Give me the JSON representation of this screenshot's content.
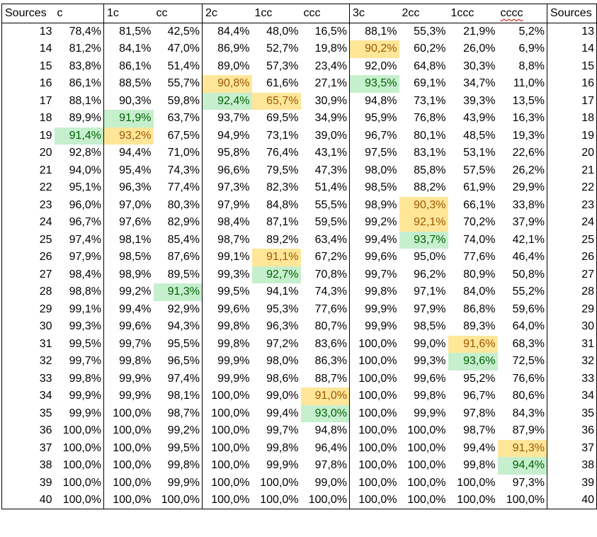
{
  "headers": [
    "Sources",
    "c",
    "1c",
    "cc",
    "2c",
    "1cc",
    "ccc",
    "3c",
    "2cc",
    "1ccc",
    "cccc",
    "Sources"
  ],
  "rows": [
    {
      "src": "13",
      "values": [
        "78,4%",
        "81,5%",
        "42,5%",
        "84,4%",
        "48,0%",
        "16,5%",
        "88,1%",
        "55,3%",
        "21,9%",
        "5,2%"
      ],
      "src_r": "13"
    },
    {
      "src": "14",
      "values": [
        "81,2%",
        "84,1%",
        "47,0%",
        "86,9%",
        "52,7%",
        "19,8%",
        "90,2%",
        "60,2%",
        "26,0%",
        "6,9%"
      ],
      "src_r": "14"
    },
    {
      "src": "15",
      "values": [
        "83,8%",
        "86,1%",
        "51,4%",
        "89,0%",
        "57,3%",
        "23,4%",
        "92,0%",
        "64,8%",
        "30,3%",
        "8,8%"
      ],
      "src_r": "15"
    },
    {
      "src": "16",
      "values": [
        "86,1%",
        "88,5%",
        "55,7%",
        "90,8%",
        "61,6%",
        "27,1%",
        "93,5%",
        "69,1%",
        "34,7%",
        "11,0%"
      ],
      "src_r": "16"
    },
    {
      "src": "17",
      "values": [
        "88,1%",
        "90,3%",
        "59,8%",
        "92,4%",
        "65,7%",
        "30,9%",
        "94,8%",
        "73,1%",
        "39,3%",
        "13,5%"
      ],
      "src_r": "17"
    },
    {
      "src": "18",
      "values": [
        "89,9%",
        "91,9%",
        "63,7%",
        "93,7%",
        "69,5%",
        "34,9%",
        "95,9%",
        "76,8%",
        "43,9%",
        "16,3%"
      ],
      "src_r": "18"
    },
    {
      "src": "19",
      "values": [
        "91,4%",
        "93,2%",
        "67,5%",
        "94,9%",
        "73,1%",
        "39,0%",
        "96,7%",
        "80,1%",
        "48,5%",
        "19,3%"
      ],
      "src_r": "19"
    },
    {
      "src": "20",
      "values": [
        "92,8%",
        "94,4%",
        "71,0%",
        "95,8%",
        "76,4%",
        "43,1%",
        "97,5%",
        "83,1%",
        "53,1%",
        "22,6%"
      ],
      "src_r": "20"
    },
    {
      "src": "21",
      "values": [
        "94,0%",
        "95,4%",
        "74,3%",
        "96,6%",
        "79,5%",
        "47,3%",
        "98,0%",
        "85,8%",
        "57,5%",
        "26,2%"
      ],
      "src_r": "21"
    },
    {
      "src": "22",
      "values": [
        "95,1%",
        "96,3%",
        "77,4%",
        "97,3%",
        "82,3%",
        "51,4%",
        "98,5%",
        "88,2%",
        "61,9%",
        "29,9%"
      ],
      "src_r": "22"
    },
    {
      "src": "23",
      "values": [
        "96,0%",
        "97,0%",
        "80,3%",
        "97,9%",
        "84,8%",
        "55,5%",
        "98,9%",
        "90,3%",
        "66,1%",
        "33,8%"
      ],
      "src_r": "23"
    },
    {
      "src": "24",
      "values": [
        "96,7%",
        "97,6%",
        "82,9%",
        "98,4%",
        "87,1%",
        "59,5%",
        "99,2%",
        "92,1%",
        "70,2%",
        "37,9%"
      ],
      "src_r": "24"
    },
    {
      "src": "25",
      "values": [
        "97,4%",
        "98,1%",
        "85,4%",
        "98,7%",
        "89,2%",
        "63,4%",
        "99,4%",
        "93,7%",
        "74,0%",
        "42,1%"
      ],
      "src_r": "25"
    },
    {
      "src": "26",
      "values": [
        "97,9%",
        "98,5%",
        "87,6%",
        "99,1%",
        "91,1%",
        "67,2%",
        "99,6%",
        "95,0%",
        "77,6%",
        "46,4%"
      ],
      "src_r": "26"
    },
    {
      "src": "27",
      "values": [
        "98,4%",
        "98,9%",
        "89,5%",
        "99,3%",
        "92,7%",
        "70,8%",
        "99,7%",
        "96,2%",
        "80,9%",
        "50,8%"
      ],
      "src_r": "27"
    },
    {
      "src": "28",
      "values": [
        "98,8%",
        "99,2%",
        "91,3%",
        "99,5%",
        "94,1%",
        "74,3%",
        "99,8%",
        "97,1%",
        "84,0%",
        "55,2%"
      ],
      "src_r": "28"
    },
    {
      "src": "29",
      "values": [
        "99,1%",
        "99,4%",
        "92,9%",
        "99,6%",
        "95,3%",
        "77,6%",
        "99,9%",
        "97,9%",
        "86,8%",
        "59,6%"
      ],
      "src_r": "29"
    },
    {
      "src": "30",
      "values": [
        "99,3%",
        "99,6%",
        "94,3%",
        "99,8%",
        "96,3%",
        "80,7%",
        "99,9%",
        "98,5%",
        "89,3%",
        "64,0%"
      ],
      "src_r": "30"
    },
    {
      "src": "31",
      "values": [
        "99,5%",
        "99,7%",
        "95,5%",
        "99,8%",
        "97,2%",
        "83,6%",
        "100,0%",
        "99,0%",
        "91,6%",
        "68,3%"
      ],
      "src_r": "31"
    },
    {
      "src": "32",
      "values": [
        "99,7%",
        "99,8%",
        "96,5%",
        "99,9%",
        "98,0%",
        "86,3%",
        "100,0%",
        "99,3%",
        "93,6%",
        "72,5%"
      ],
      "src_r": "32"
    },
    {
      "src": "33",
      "values": [
        "99,8%",
        "99,9%",
        "97,4%",
        "99,9%",
        "98,6%",
        "88,7%",
        "100,0%",
        "99,6%",
        "95,2%",
        "76,6%"
      ],
      "src_r": "33"
    },
    {
      "src": "34",
      "values": [
        "99,9%",
        "99,9%",
        "98,1%",
        "100,0%",
        "99,0%",
        "91,0%",
        "100,0%",
        "99,8%",
        "96,7%",
        "80,6%"
      ],
      "src_r": "34"
    },
    {
      "src": "35",
      "values": [
        "99,9%",
        "100,0%",
        "98,7%",
        "100,0%",
        "99,4%",
        "93,0%",
        "100,0%",
        "99,9%",
        "97,8%",
        "84,3%"
      ],
      "src_r": "35"
    },
    {
      "src": "36",
      "values": [
        "100,0%",
        "100,0%",
        "99,2%",
        "100,0%",
        "99,7%",
        "94,8%",
        "100,0%",
        "100,0%",
        "98,7%",
        "87,9%"
      ],
      "src_r": "36"
    },
    {
      "src": "37",
      "values": [
        "100,0%",
        "100,0%",
        "99,5%",
        "100,0%",
        "99,8%",
        "96,4%",
        "100,0%",
        "100,0%",
        "99,4%",
        "91,3%"
      ],
      "src_r": "37"
    },
    {
      "src": "38",
      "values": [
        "100,0%",
        "100,0%",
        "99,8%",
        "100,0%",
        "99,9%",
        "97,8%",
        "100,0%",
        "100,0%",
        "99,8%",
        "94,4%"
      ],
      "src_r": "38"
    },
    {
      "src": "39",
      "values": [
        "100,0%",
        "100,0%",
        "99,9%",
        "100,0%",
        "100,0%",
        "99,0%",
        "100,0%",
        "100,0%",
        "100,0%",
        "97,3%"
      ],
      "src_r": "39"
    },
    {
      "src": "40",
      "values": [
        "100,0%",
        "100,0%",
        "100,0%",
        "100,0%",
        "100,0%",
        "100,0%",
        "100,0%",
        "100,0%",
        "100,0%",
        "100,0%"
      ],
      "src_r": "40"
    }
  ],
  "highlights": {
    "amber": [
      [
        6,
        1
      ],
      [
        3,
        3
      ],
      [
        1,
        6
      ],
      [
        4,
        4
      ],
      [
        10,
        7
      ],
      [
        11,
        7
      ],
      [
        13,
        4
      ],
      [
        21,
        5
      ],
      [
        18,
        8
      ],
      [
        24,
        9
      ]
    ],
    "green": [
      [
        6,
        0
      ],
      [
        5,
        1
      ],
      [
        15,
        2
      ],
      [
        4,
        3
      ],
      [
        14,
        4
      ],
      [
        22,
        5
      ],
      [
        3,
        6
      ],
      [
        12,
        7
      ],
      [
        19,
        8
      ],
      [
        25,
        9
      ]
    ],
    "amber_color": "#ffe699",
    "green_color": "#c6efce",
    "amber_text_color": "#9c5700",
    "green_text_color": "#006100"
  },
  "spellcheck_flagged_header": "cccc"
}
